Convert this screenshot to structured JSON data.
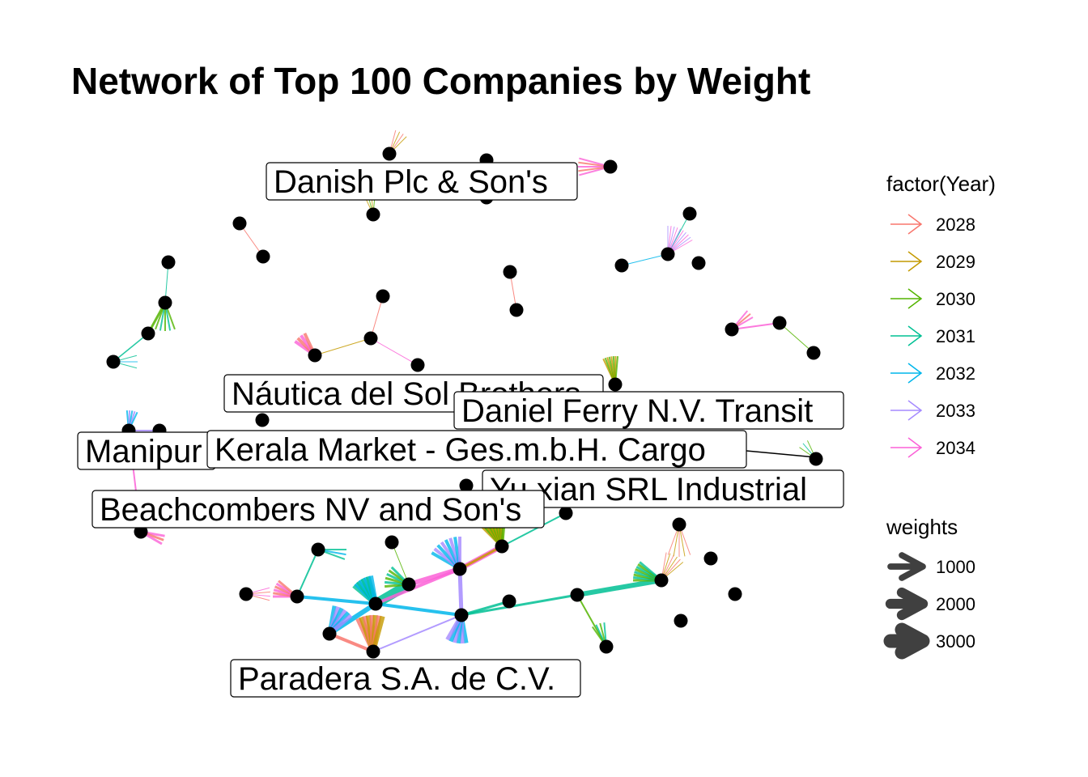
{
  "title": "Network of Top 100 Companies by Weight",
  "legend_year": {
    "title": "factor(Year)",
    "items": [
      {
        "label": "2028",
        "color": "#F8766D"
      },
      {
        "label": "2029",
        "color": "#C49A00"
      },
      {
        "label": "2030",
        "color": "#53B400"
      },
      {
        "label": "2031",
        "color": "#00C094"
      },
      {
        "label": "2032",
        "color": "#00B6EB"
      },
      {
        "label": "2033",
        "color": "#A58AFF"
      },
      {
        "label": "2034",
        "color": "#FB61D7"
      }
    ]
  },
  "legend_weights": {
    "title": "weights",
    "items": [
      {
        "label": "1000",
        "value": 1000
      },
      {
        "label": "2000",
        "value": 2000
      },
      {
        "label": "3000",
        "value": 3000
      }
    ]
  },
  "node_labels": [
    {
      "id": "danish",
      "text": "Danish  Plc & Son's"
    },
    {
      "id": "nautica",
      "text": "Náutica del Sol Brothers"
    },
    {
      "id": "daniel",
      "text": "Daniel Ferry N.V. Transit"
    },
    {
      "id": "manipur",
      "text": "Manipur"
    },
    {
      "id": "kerala",
      "text": "Kerala  Market - Ges.m.b.H. Cargo"
    },
    {
      "id": "yuxian",
      "text": "Yu xian  SRL Industrial"
    },
    {
      "id": "beach",
      "text": "Beachcombers NV and Son's"
    },
    {
      "id": "paradera",
      "text": "Paradera S.A. de C.V."
    }
  ]
}
